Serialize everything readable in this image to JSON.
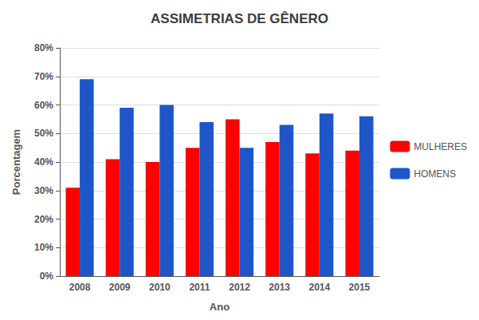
{
  "chart_data": {
    "type": "bar",
    "title": "ASSIMETRIAS DE GÊNERO",
    "xlabel": "Ano",
    "ylabel": "Porcentagem",
    "categories": [
      "2008",
      "2009",
      "2010",
      "2011",
      "2012",
      "2013",
      "2014",
      "2015"
    ],
    "series": [
      {
        "name": "MULHERES",
        "color": "#ff0000",
        "values": [
          0.31,
          0.41,
          0.4,
          0.45,
          0.55,
          0.47,
          0.43,
          0.44
        ]
      },
      {
        "name": "HOMENS",
        "color": "#1e56c8",
        "values": [
          0.69,
          0.59,
          0.6,
          0.54,
          0.45,
          0.53,
          0.57,
          0.56
        ]
      }
    ],
    "ylim": [
      0,
      0.8
    ],
    "yticks": [
      {
        "value": 0,
        "label": "0%"
      },
      {
        "value": 0.1,
        "label": "10%"
      },
      {
        "value": 0.2,
        "label": "20%"
      },
      {
        "value": 0.3,
        "label": "30%"
      },
      {
        "value": 0.4,
        "label": "40%"
      },
      {
        "value": 0.5,
        "label": "50%"
      },
      {
        "value": 0.6,
        "label": "60%"
      },
      {
        "value": 0.7,
        "label": "70%"
      },
      {
        "value": 0.8,
        "label": "80%"
      }
    ],
    "grid": true,
    "legend": "right"
  }
}
